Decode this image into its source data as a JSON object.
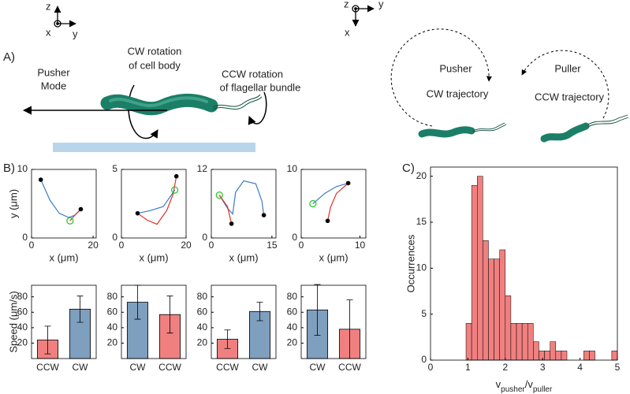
{
  "panel_labels": [
    "A)",
    "B)",
    "C)"
  ],
  "diagram": {
    "left_axes": [
      "z",
      "x",
      "y"
    ],
    "right_axes": [
      "z",
      "y",
      "x"
    ],
    "pusher_mode": [
      "Pusher",
      "Mode"
    ],
    "cw_rotation": [
      "CW rotation",
      "of cell body"
    ],
    "ccw_rotation": [
      "CCW rotation",
      "of flagellar bundle"
    ],
    "pusher": [
      "Pusher",
      "CW trajectory"
    ],
    "puller": [
      "Puller",
      "CCW trajectory"
    ]
  },
  "chart_data": [
    {
      "type": "trajectory",
      "xlabel": "x (μm)",
      "ylabel": "y (μm)",
      "xlim": [
        0,
        21
      ],
      "xticks": [
        0,
        20
      ],
      "ylim": [
        0,
        10
      ],
      "yticks": [
        0,
        10
      ],
      "series": [
        {
          "color": "#3b7cc4",
          "x": [
            3,
            6,
            9,
            12,
            14,
            16
          ],
          "y": [
            8.5,
            5.5,
            3.6,
            3,
            3.3,
            4.2
          ]
        },
        {
          "color": "#e0302a",
          "x": [
            12.5,
            14,
            16
          ],
          "y": [
            2.5,
            3.3,
            4.2
          ]
        }
      ],
      "endpoints": {
        "x": [
          3,
          16
        ],
        "y": [
          8.5,
          4.2
        ]
      },
      "start": {
        "x": [
          12.5
        ],
        "y": [
          2.5
        ]
      }
    },
    {
      "type": "trajectory",
      "xlabel": "x (μm)",
      "xlim": [
        0,
        20
      ],
      "xticks": [
        0,
        20
      ],
      "ylim": [
        0,
        5
      ],
      "yticks": [
        0,
        5
      ],
      "series": [
        {
          "color": "#3b7cc4",
          "x": [
            5,
            9,
            13,
            16.5
          ],
          "y": [
            1.8,
            2,
            2.3,
            3.5
          ]
        },
        {
          "color": "#e0302a",
          "x": [
            5,
            8,
            11,
            14,
            16,
            17
          ],
          "y": [
            1.8,
            1.3,
            1,
            2,
            3.2,
            4.5
          ]
        }
      ],
      "endpoints": {
        "x": [
          5,
          17
        ],
        "y": [
          1.8,
          4.5
        ]
      },
      "start": {
        "x": [
          16.5
        ],
        "y": [
          3.5
        ]
      }
    },
    {
      "type": "trajectory",
      "xlabel": "x (μm)",
      "xlim": [
        0,
        16
      ],
      "xticks": [
        0,
        15
      ],
      "ylim": [
        0,
        12
      ],
      "yticks": [
        0,
        12
      ],
      "series": [
        {
          "color": "#3b7cc4",
          "x": [
            2,
            4,
            5.3,
            6,
            8,
            11,
            12.5,
            13
          ],
          "y": [
            7.5,
            5.2,
            4.2,
            8,
            10,
            9.5,
            6.5,
            4
          ]
        },
        {
          "color": "#e0302a",
          "x": [
            2,
            4,
            5
          ],
          "y": [
            7.5,
            5.5,
            2.5
          ]
        }
      ],
      "endpoints": {
        "x": [
          5,
          13
        ],
        "y": [
          2.5,
          4
        ]
      },
      "start": {
        "x": [
          2
        ],
        "y": [
          7.5
        ]
      }
    },
    {
      "type": "trajectory",
      "xlabel": "x (μm)",
      "xlim": [
        0,
        11
      ],
      "xticks": [
        0,
        10
      ],
      "ylim": [
        0,
        10
      ],
      "yticks": [
        0,
        10
      ],
      "series": [
        {
          "color": "#3b7cc4",
          "x": [
            2,
            4,
            6,
            8
          ],
          "y": [
            5,
            6.5,
            7.5,
            8
          ]
        },
        {
          "color": "#e0302a",
          "x": [
            8,
            6,
            5,
            4.5
          ],
          "y": [
            8,
            6.5,
            4.5,
            2.5
          ]
        }
      ],
      "endpoints": {
        "x": [
          8,
          4.5
        ],
        "y": [
          8,
          2.5
        ]
      },
      "start": {
        "x": [
          2
        ],
        "y": [
          5
        ]
      }
    },
    {
      "type": "bar",
      "ylabel": "Speed (μm/s)",
      "categories": [
        "CCW",
        "CW"
      ],
      "values": [
        24,
        64
      ],
      "errors": [
        18,
        17
      ],
      "colors": [
        "#f08080",
        "#7f9fbf"
      ],
      "ylim": [
        0,
        95
      ],
      "yticks": [
        20,
        40,
        60,
        80
      ]
    },
    {
      "type": "bar",
      "categories": [
        "CW",
        "CCW"
      ],
      "values": [
        73,
        57
      ],
      "errors": [
        22,
        24
      ],
      "colors": [
        "#7f9fbf",
        "#f08080"
      ],
      "ylim": [
        0,
        95
      ],
      "yticks": [
        20,
        40,
        60,
        80
      ]
    },
    {
      "type": "bar",
      "categories": [
        "CCW",
        "CW"
      ],
      "values": [
        25,
        61
      ],
      "errors": [
        12,
        12
      ],
      "colors": [
        "#f08080",
        "#7f9fbf"
      ],
      "ylim": [
        0,
        95
      ],
      "yticks": [
        20,
        40,
        60,
        80
      ]
    },
    {
      "type": "bar",
      "categories": [
        "CW",
        "CCW"
      ],
      "values": [
        63,
        38
      ],
      "errors": [
        33,
        38
      ],
      "colors": [
        "#7f9fbf",
        "#f08080"
      ],
      "ylim": [
        0,
        95
      ],
      "yticks": [
        20,
        40,
        60,
        80
      ]
    },
    {
      "type": "histogram",
      "xlabel": [
        "v",
        "pusher",
        "/v",
        "puller"
      ],
      "ylabel": "Occurrences",
      "color": "#f08080",
      "bins": [
        0.95,
        1.1,
        1.25,
        1.4,
        1.55,
        1.7,
        1.85,
        2.0,
        2.15,
        2.3,
        2.45,
        2.6,
        2.75,
        2.9,
        3.05,
        3.2,
        3.35,
        3.5,
        3.65,
        3.8,
        3.95,
        4.1,
        4.25,
        4.4,
        4.55,
        4.7,
        4.85,
        5.0
      ],
      "counts": [
        4,
        19,
        20,
        13,
        11,
        11,
        12,
        7,
        4,
        4,
        4,
        4,
        2,
        1,
        1,
        2,
        1,
        1,
        0,
        0,
        0,
        1,
        1,
        0,
        0,
        0,
        1
      ],
      "xlim": [
        0,
        5
      ],
      "xticks": [
        0,
        1,
        2,
        3,
        4,
        5
      ],
      "ylim": [
        0,
        21
      ],
      "yticks": [
        0,
        5,
        10,
        15,
        20
      ]
    }
  ]
}
